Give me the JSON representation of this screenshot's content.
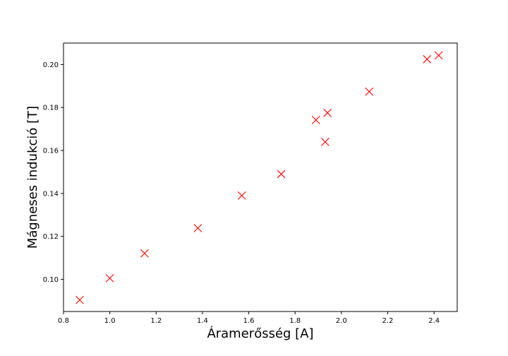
{
  "chart_data": {
    "type": "scatter",
    "xlabel": "Áramerősség [A]",
    "ylabel": "Mágneses indukció [T]",
    "xlim": [
      0.8,
      2.5
    ],
    "ylim": [
      0.085,
      0.21
    ],
    "x_ticks": [
      "0.8",
      "1.0",
      "1.2",
      "1.4",
      "1.6",
      "1.8",
      "2.0",
      "2.2",
      "2.4"
    ],
    "y_ticks": [
      "0.10",
      "0.12",
      "0.14",
      "0.16",
      "0.18",
      "0.20"
    ],
    "grid": false,
    "marker": "x",
    "marker_color": "#ff0000",
    "series": [
      {
        "points": [
          {
            "x": 0.87,
            "y": 0.0904
          },
          {
            "x": 1.0,
            "y": 0.1005
          },
          {
            "x": 1.15,
            "y": 0.1121
          },
          {
            "x": 1.38,
            "y": 0.1238
          },
          {
            "x": 1.57,
            "y": 0.139
          },
          {
            "x": 1.74,
            "y": 0.149
          },
          {
            "x": 1.89,
            "y": 0.1742
          },
          {
            "x": 1.93,
            "y": 0.164
          },
          {
            "x": 1.94,
            "y": 0.1775
          },
          {
            "x": 2.12,
            "y": 0.1874
          },
          {
            "x": 2.37,
            "y": 0.2025
          },
          {
            "x": 2.42,
            "y": 0.2043
          }
        ]
      }
    ]
  }
}
